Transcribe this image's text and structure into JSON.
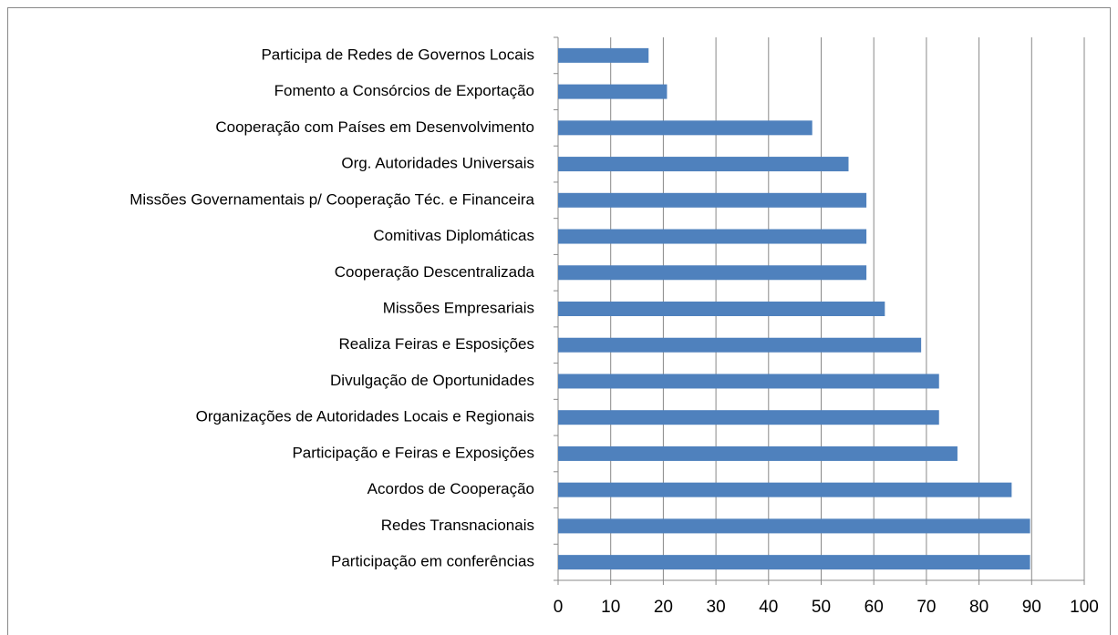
{
  "chart_data": {
    "type": "bar",
    "orientation": "horizontal",
    "categories": [
      "Participa de Redes de Governos Locais",
      "Fomento a Consórcios de Exportação",
      "Cooperação com Países em Desenvolvimento",
      "Org. Autoridades Universais",
      "Missões Governamentais p/ Cooperação Téc. e Financeira",
      "Comitivas Diplomáticas",
      "Cooperação Descentralizada",
      "Missões Empresariais",
      "Realiza Feiras e Esposições",
      "Divulgação de Oportunidades",
      "Organizações de Autoridades Locais e Regionais",
      "Participação e Feiras e Exposições",
      "Acordos de Cooperação",
      "Redes Transnacionais",
      "Participação em conferências"
    ],
    "values": [
      17.2,
      20.7,
      48.3,
      55.2,
      58.6,
      58.6,
      58.6,
      62.1,
      69.0,
      72.4,
      72.4,
      75.9,
      86.2,
      89.7,
      89.7
    ],
    "color": "#4f81bd",
    "xlim": [
      0,
      100
    ],
    "xticks": [
      0,
      10,
      20,
      30,
      40,
      50,
      60,
      70,
      80,
      90,
      100
    ],
    "grid": true
  }
}
